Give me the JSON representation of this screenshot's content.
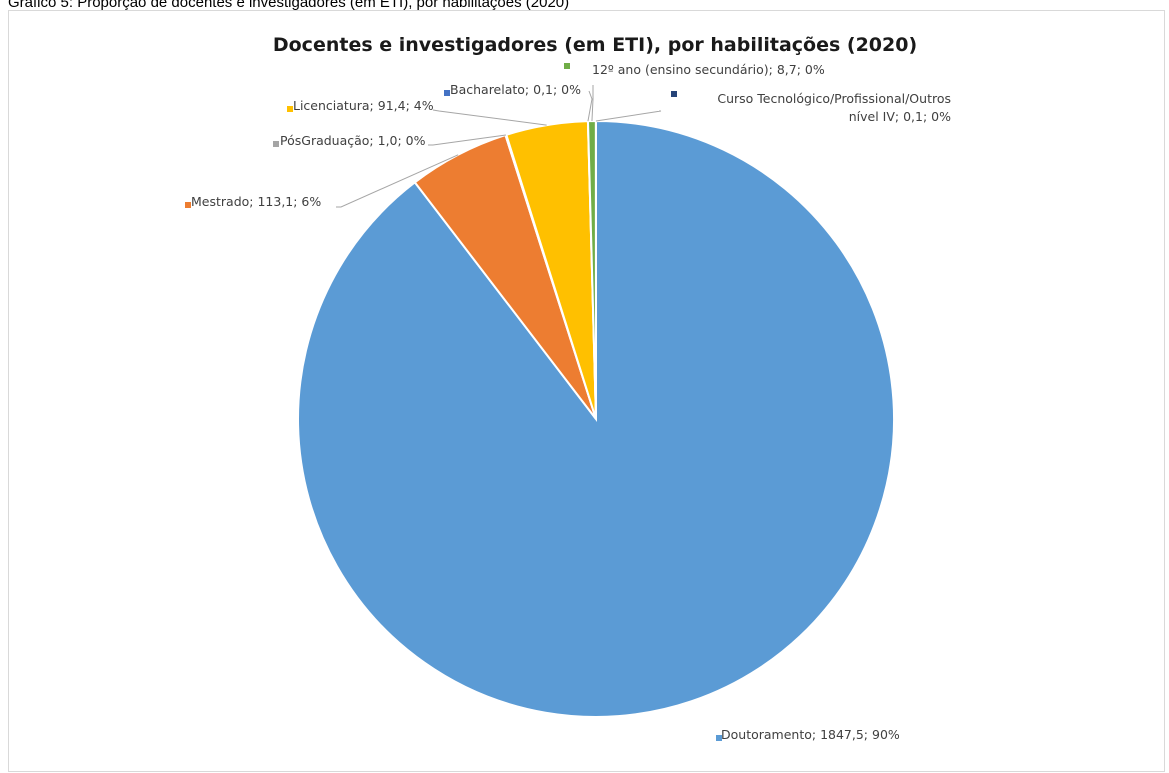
{
  "caption": "Gráfico 5: Proporção de docentes e investigadores (em ETI), por habilitações (2020)",
  "chart_data": {
    "type": "pie",
    "title": "Docentes e investigadores (em ETI), por habilitações (2020)",
    "slices": [
      {
        "category": "Doutoramento",
        "value": 1847.5,
        "percent": "90%",
        "label": "Doutoramento; 1847,5; 90%",
        "color": "#5b9bd5"
      },
      {
        "category": "Mestrado",
        "value": 113.1,
        "percent": "6%",
        "label": "Mestrado; 113,1; 6%",
        "color": "#ed7d31"
      },
      {
        "category": "PósGraduação",
        "value": 1.0,
        "percent": "0%",
        "label": "PósGraduação; 1,0; 0%",
        "color": "#a5a5a5"
      },
      {
        "category": "Licenciatura",
        "value": 91.4,
        "percent": "4%",
        "label": "Licenciatura; 91,4; 4%",
        "color": "#ffc000"
      },
      {
        "category": "Bacharelato",
        "value": 0.1,
        "percent": "0%",
        "label": "Bacharelato; 0,1; 0%",
        "color": "#4472c4"
      },
      {
        "category": "12º ano (ensino secundário)",
        "value": 8.7,
        "percent": "0%",
        "label": "12º ano (ensino secundário); 8,7; 0%",
        "color": "#70ad47"
      },
      {
        "category": "Curso Tecnológico/Profissional/Outros nível IV",
        "value": 0.1,
        "percent": "0%",
        "label": "Curso Tecnológico/Profissional/Outros nível IV; 0,1; 0%",
        "label_lines": [
          "Curso Tecnológico/Profissional/Outros",
          "nível IV; 0,1; 0%"
        ],
        "color": "#264478"
      }
    ],
    "legend": "none",
    "data_labels": "outside with leader lines"
  }
}
